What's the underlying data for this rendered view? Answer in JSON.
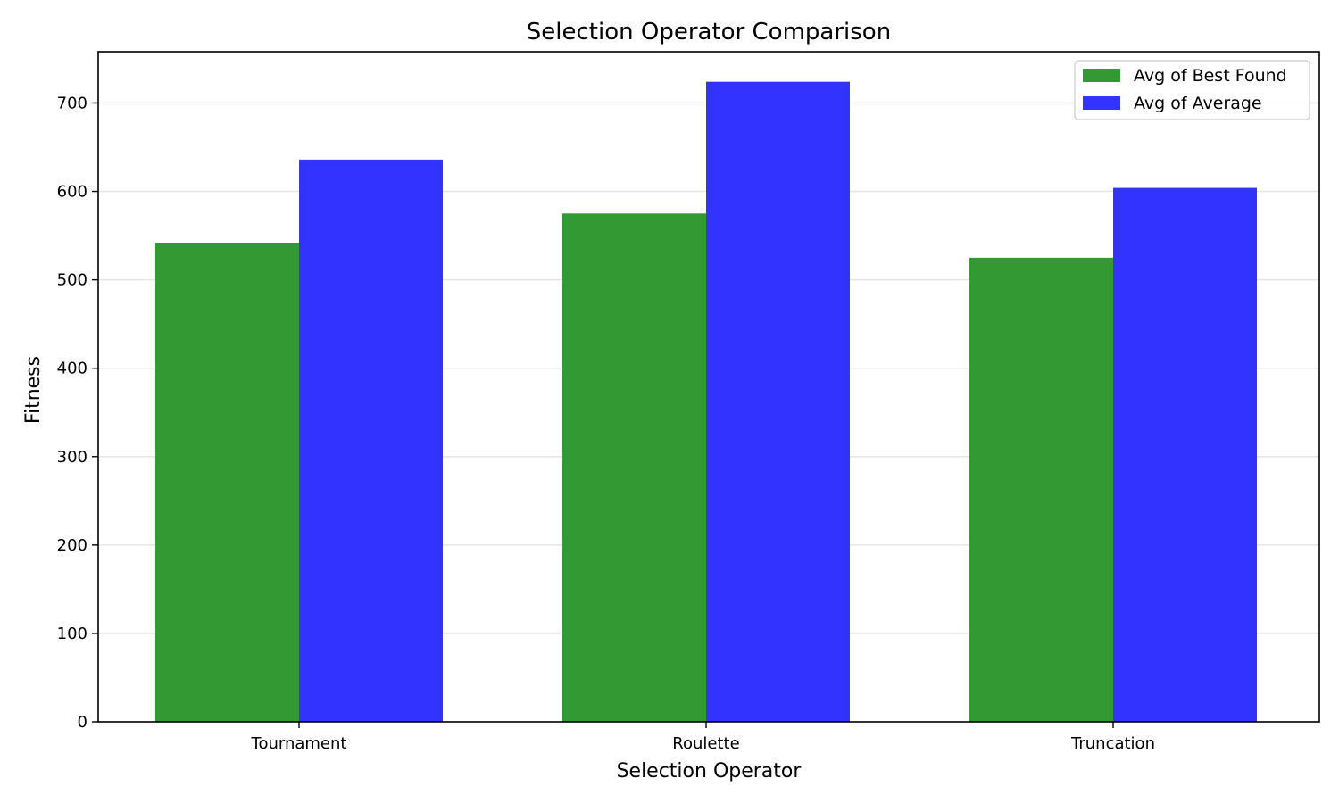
{
  "chart_data": {
    "type": "bar",
    "title": "Selection Operator Comparison",
    "xlabel": "Selection Operator",
    "ylabel": "Fitness",
    "categories": [
      "Tournament",
      "Roulette",
      "Truncation"
    ],
    "series": [
      {
        "name": "Avg of Best Found",
        "color": "#339933",
        "values": [
          542,
          575,
          525
        ]
      },
      {
        "name": "Avg of Average",
        "color": "#3333ff",
        "values": [
          636,
          724,
          604
        ]
      }
    ],
    "ylim": [
      0,
      758
    ],
    "yticks": [
      0,
      100,
      200,
      300,
      400,
      500,
      600,
      700
    ],
    "grid": "horizontal",
    "legend": "top-right"
  }
}
